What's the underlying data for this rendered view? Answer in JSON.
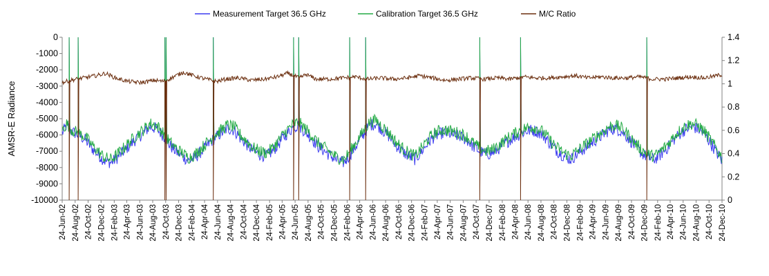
{
  "chart_data": {
    "type": "line",
    "title": "",
    "ylabel": "AMSR-E Radiance",
    "y2label": "",
    "ylim": [
      -10000,
      0
    ],
    "y2lim": [
      0,
      1.4
    ],
    "yticks": [
      "0",
      "-1000",
      "-2000",
      "-3000",
      "-4000",
      "-5000",
      "-6000",
      "-7000",
      "-8000",
      "-9000",
      "-10000"
    ],
    "y2ticks": [
      "1.4",
      "1.2",
      "1",
      "0.8",
      "0.6",
      "0.4",
      "0.2",
      "0"
    ],
    "xlim": [
      "2002-06-24",
      "2010-12-24"
    ],
    "xticks": [
      "24-Jun-02",
      "24-Aug-02",
      "24-Oct-02",
      "24-Dec-02",
      "24-Feb-03",
      "24-Apr-03",
      "24-Jun-03",
      "24-Aug-03",
      "24-Oct-03",
      "24-Dec-03",
      "24-Feb-04",
      "24-Apr-04",
      "24-Jun-04",
      "24-Aug-04",
      "24-Oct-04",
      "24-Dec-04",
      "24-Feb-05",
      "24-Apr-05",
      "24-Jun-05",
      "24-Aug-05",
      "24-Oct-05",
      "24-Dec-05",
      "24-Feb-06",
      "24-Apr-06",
      "24-Jun-06",
      "24-Aug-06",
      "24-Oct-06",
      "24-Dec-06",
      "24-Feb-07",
      "24-Apr-07",
      "24-Jun-07",
      "24-Aug-07",
      "24-Oct-07",
      "24-Dec-07",
      "24-Feb-08",
      "24-Apr-08",
      "24-Jun-08",
      "24-Aug-08",
      "24-Oct-08",
      "24-Dec-08",
      "24-Feb-09",
      "24-Apr-09",
      "24-Jun-09",
      "24-Aug-09",
      "24-Oct-09",
      "24-Dec-09",
      "24-Feb-10",
      "24-Apr-10",
      "24-Jun-10",
      "24-Aug-10",
      "24-Oct-10",
      "24-Dec-10"
    ],
    "grid": false,
    "legend_position": "top",
    "series": [
      {
        "name": "Measurement Target 36.5 GHz",
        "axis": "left",
        "color": "#3c3cf0",
        "x": [
          "2002-06-24",
          "2002-07-15",
          "2002-08-10",
          "2002-09-10",
          "2002-10-10",
          "2002-11-10",
          "2002-12-10",
          "2003-01-10",
          "2003-02-10",
          "2003-03-10",
          "2003-04-10",
          "2003-05-10",
          "2003-06-10",
          "2003-07-10",
          "2003-08-10",
          "2003-09-10",
          "2003-10-10",
          "2003-11-10",
          "2003-12-10",
          "2004-01-10",
          "2004-02-10",
          "2004-03-10",
          "2004-04-10",
          "2004-05-10",
          "2004-06-10",
          "2004-07-10",
          "2004-08-10",
          "2004-09-10",
          "2004-10-10",
          "2004-11-10",
          "2004-12-10",
          "2005-01-10",
          "2005-02-10",
          "2005-03-10",
          "2005-04-10",
          "2005-05-10",
          "2005-06-10",
          "2005-07-10",
          "2005-08-10",
          "2005-09-10",
          "2005-10-10",
          "2005-11-10",
          "2005-12-10",
          "2006-01-10",
          "2006-02-10",
          "2006-03-10",
          "2006-04-10",
          "2006-05-10",
          "2006-06-10",
          "2006-07-10",
          "2006-08-10",
          "2006-09-10",
          "2006-10-10",
          "2006-11-10",
          "2006-12-10",
          "2007-01-10",
          "2007-02-10",
          "2007-03-10",
          "2007-04-10",
          "2007-05-10",
          "2007-06-10",
          "2007-07-10",
          "2007-08-10",
          "2007-09-10",
          "2007-10-10",
          "2007-11-10",
          "2007-12-10",
          "2008-01-10",
          "2008-02-10",
          "2008-03-10",
          "2008-04-10",
          "2008-05-10",
          "2008-06-10",
          "2008-07-10",
          "2008-08-10",
          "2008-09-10",
          "2008-10-10",
          "2008-11-10",
          "2008-12-10",
          "2009-01-10",
          "2009-02-10",
          "2009-03-10",
          "2009-04-10",
          "2009-05-10",
          "2009-06-10",
          "2009-07-10",
          "2009-08-10",
          "2009-09-10",
          "2009-10-10",
          "2009-11-10",
          "2009-12-10",
          "2010-01-10",
          "2010-02-10",
          "2010-03-10",
          "2010-04-10",
          "2010-05-10",
          "2010-06-10",
          "2010-07-10",
          "2010-08-10",
          "2010-09-10",
          "2010-10-10",
          "2010-11-10",
          "2010-12-10",
          "2010-12-24"
        ],
        "y": [
          -5900,
          -5400,
          -5800,
          -6000,
          -6300,
          -6800,
          -7200,
          -7600,
          -7700,
          -7400,
          -7000,
          -6600,
          -6200,
          -5900,
          -5500,
          -5600,
          -6000,
          -6600,
          -7000,
          -7300,
          -7600,
          -7400,
          -7000,
          -6600,
          -6200,
          -5900,
          -5600,
          -5700,
          -6200,
          -6600,
          -7000,
          -7200,
          -7300,
          -7000,
          -6500,
          -6000,
          -5600,
          -5400,
          -5800,
          -6200,
          -6700,
          -7000,
          -7300,
          -7600,
          -7700,
          -7200,
          -6600,
          -6000,
          -5400,
          -5300,
          -5700,
          -6100,
          -6600,
          -7000,
          -7300,
          -7500,
          -7000,
          -6500,
          -6100,
          -5900,
          -5900,
          -6000,
          -6100,
          -6300,
          -6700,
          -7000,
          -7200,
          -7100,
          -6800,
          -6500,
          -6200,
          -6000,
          -5800,
          -5700,
          -5800,
          -6100,
          -6600,
          -7000,
          -7300,
          -7500,
          -7200,
          -6900,
          -6600,
          -6300,
          -6000,
          -5700,
          -5600,
          -5800,
          -6200,
          -6700,
          -7100,
          -7400,
          -7500,
          -7200,
          -6800,
          -6300,
          -5900,
          -5600,
          -5500,
          -5700,
          -6100,
          -6700,
          -7300,
          -7600
        ]
      },
      {
        "name": "Calibration Target 36.5 GHz",
        "axis": "left",
        "color": "#22aa44",
        "x": [
          "2002-06-24",
          "2002-07-15",
          "2002-08-10",
          "2002-09-10",
          "2002-10-10",
          "2002-11-10",
          "2002-12-10",
          "2003-01-10",
          "2003-02-10",
          "2003-03-10",
          "2003-04-10",
          "2003-05-10",
          "2003-06-10",
          "2003-07-10",
          "2003-08-10",
          "2003-09-10",
          "2003-10-10",
          "2003-11-10",
          "2003-12-10",
          "2004-01-10",
          "2004-02-10",
          "2004-03-10",
          "2004-04-10",
          "2004-05-10",
          "2004-06-10",
          "2004-07-10",
          "2004-08-10",
          "2004-09-10",
          "2004-10-10",
          "2004-11-10",
          "2004-12-10",
          "2005-01-10",
          "2005-02-10",
          "2005-03-10",
          "2005-04-10",
          "2005-05-10",
          "2005-06-10",
          "2005-07-10",
          "2005-08-10",
          "2005-09-10",
          "2005-10-10",
          "2005-11-10",
          "2005-12-10",
          "2006-01-10",
          "2006-02-10",
          "2006-03-10",
          "2006-04-10",
          "2006-05-10",
          "2006-06-10",
          "2006-07-10",
          "2006-08-10",
          "2006-09-10",
          "2006-10-10",
          "2006-11-10",
          "2006-12-10",
          "2007-01-10",
          "2007-02-10",
          "2007-03-10",
          "2007-04-10",
          "2007-05-10",
          "2007-06-10",
          "2007-07-10",
          "2007-08-10",
          "2007-09-10",
          "2007-10-10",
          "2007-11-10",
          "2007-12-10",
          "2008-01-10",
          "2008-02-10",
          "2008-03-10",
          "2008-04-10",
          "2008-05-10",
          "2008-06-10",
          "2008-07-10",
          "2008-08-10",
          "2008-09-10",
          "2008-10-10",
          "2008-11-10",
          "2008-12-10",
          "2009-01-10",
          "2009-02-10",
          "2009-03-10",
          "2009-04-10",
          "2009-05-10",
          "2009-06-10",
          "2009-07-10",
          "2009-08-10",
          "2009-09-10",
          "2009-10-10",
          "2009-11-10",
          "2009-12-10",
          "2010-01-10",
          "2010-02-10",
          "2010-03-10",
          "2010-04-10",
          "2010-05-10",
          "2010-06-10",
          "2010-07-10",
          "2010-08-10",
          "2010-09-10",
          "2010-10-10",
          "2010-11-10",
          "2010-12-10",
          "2010-12-24"
        ],
        "y": [
          -5700,
          -5300,
          -5700,
          -5900,
          -6100,
          -6600,
          -7000,
          -7400,
          -7500,
          -7200,
          -6800,
          -6400,
          -6000,
          -5700,
          -5300,
          -5400,
          -5800,
          -6400,
          -6800,
          -7100,
          -7400,
          -7200,
          -6800,
          -6400,
          -6000,
          -5700,
          -5400,
          -5500,
          -6000,
          -6400,
          -6800,
          -7000,
          -7100,
          -6800,
          -6300,
          -5800,
          -5400,
          -5200,
          -5600,
          -6000,
          -6500,
          -6800,
          -7100,
          -7400,
          -7500,
          -7000,
          -6400,
          -5800,
          -5200,
          -5100,
          -5500,
          -5900,
          -6400,
          -6800,
          -7100,
          -7300,
          -6800,
          -6300,
          -5900,
          -5700,
          -5700,
          -5800,
          -5900,
          -6100,
          -6500,
          -6800,
          -7000,
          -6900,
          -6600,
          -6300,
          -6000,
          -5800,
          -5600,
          -5500,
          -5600,
          -5900,
          -6400,
          -6800,
          -7100,
          -7300,
          -7000,
          -6700,
          -6400,
          -6100,
          -5800,
          -5500,
          -5400,
          -5600,
          -6000,
          -6500,
          -6900,
          -7200,
          -7300,
          -7000,
          -6600,
          -6100,
          -5700,
          -5400,
          -5300,
          -5500,
          -5900,
          -6500,
          -7100,
          -7400
        ]
      },
      {
        "name": "M/C Ratio",
        "axis": "right",
        "color": "#6b2e0e",
        "x": [
          "2002-06-24",
          "2002-08-01",
          "2002-10-01",
          "2002-12-01",
          "2003-01-15",
          "2003-03-01",
          "2003-05-01",
          "2003-07-01",
          "2003-09-01",
          "2003-10-15",
          "2003-12-01",
          "2004-01-15",
          "2004-03-01",
          "2004-05-01",
          "2004-06-20",
          "2004-08-01",
          "2004-10-01",
          "2004-12-01",
          "2005-02-01",
          "2005-04-01",
          "2005-05-20",
          "2005-07-15",
          "2005-08-15",
          "2005-10-01",
          "2005-12-01",
          "2006-02-01",
          "2006-04-01",
          "2006-06-01",
          "2006-08-01",
          "2006-10-01",
          "2006-12-01",
          "2007-02-01",
          "2007-04-01",
          "2007-06-01",
          "2007-08-01",
          "2007-10-01",
          "2007-12-01",
          "2008-02-01",
          "2008-04-01",
          "2008-06-01",
          "2008-08-01",
          "2008-10-01",
          "2008-12-01",
          "2009-02-01",
          "2009-04-01",
          "2009-06-01",
          "2009-08-01",
          "2009-10-01",
          "2009-12-01",
          "2010-02-01",
          "2010-04-01",
          "2010-06-01",
          "2010-08-01",
          "2010-10-01",
          "2010-12-01",
          "2010-12-24"
        ],
        "y": [
          1.01,
          1.03,
          1.05,
          1.07,
          1.09,
          1.05,
          1.02,
          1.01,
          1.03,
          1.02,
          1.06,
          1.1,
          1.07,
          1.04,
          1.02,
          1.04,
          1.05,
          1.03,
          1.04,
          1.06,
          1.09,
          1.05,
          1.08,
          1.04,
          1.04,
          1.05,
          1.06,
          1.04,
          1.05,
          1.04,
          1.05,
          1.07,
          1.05,
          1.03,
          1.04,
          1.05,
          1.04,
          1.05,
          1.04,
          1.06,
          1.05,
          1.05,
          1.06,
          1.07,
          1.05,
          1.06,
          1.05,
          1.05,
          1.06,
          1.04,
          1.04,
          1.05,
          1.06,
          1.05,
          1.07,
          1.08
        ]
      }
    ],
    "ratio_drops_to_zero": [
      "2002-07-28",
      "2002-09-08",
      "2003-10-20",
      "2003-10-27",
      "2004-06-03",
      "2005-06-17",
      "2005-07-10",
      "2006-03-08",
      "2006-05-21",
      "2007-11-11",
      "2008-05-19",
      "2010-01-05"
    ]
  }
}
